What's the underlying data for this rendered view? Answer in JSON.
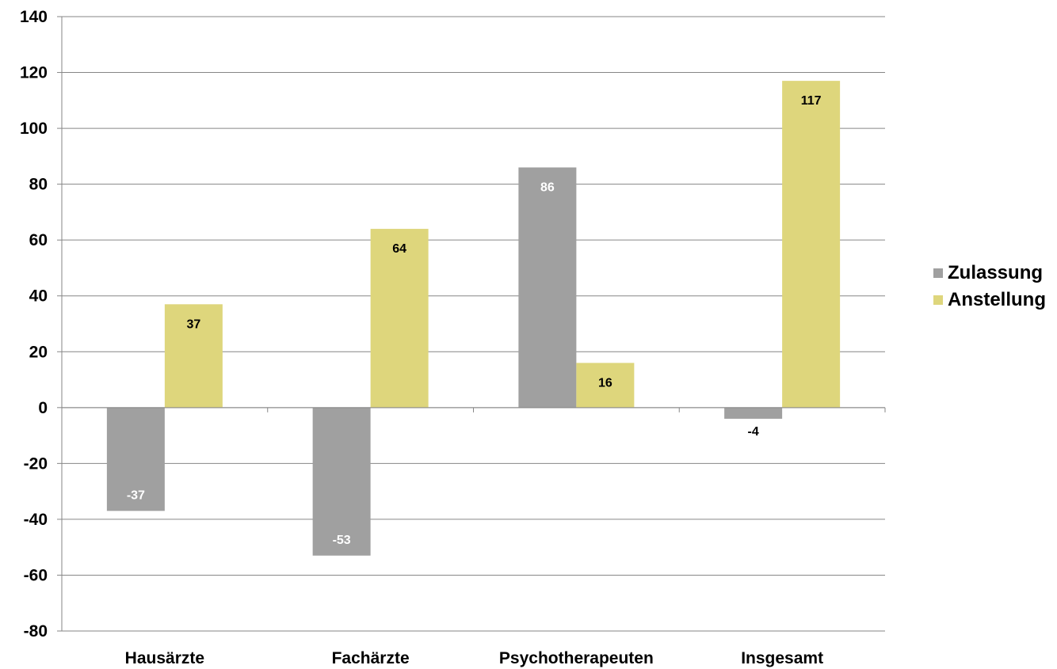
{
  "chart_data": {
    "type": "bar",
    "categories": [
      "Hausärzte",
      "Fachärzte",
      "Psychotherapeuten",
      "Insgesamt"
    ],
    "series": [
      {
        "name": "Zulassung",
        "values": [
          -37,
          -53,
          86,
          -4
        ],
        "color": "#a0a0a0",
        "label_color": "#ffffff"
      },
      {
        "name": "Anstellung",
        "values": [
          37,
          64,
          16,
          117
        ],
        "color": "#ded67c",
        "label_color": "#000000"
      }
    ],
    "data_labels": {
      "Zulassung": [
        "-37",
        "-53",
        "86",
        "-4"
      ],
      "Anstellung": [
        "37",
        "64",
        "16",
        "117"
      ]
    },
    "yticks": [
      "140",
      "120",
      "100",
      "80",
      "60",
      "40",
      "20",
      "0",
      "-20",
      "-40",
      "-60",
      "-80"
    ],
    "ylim": [
      -80,
      140
    ],
    "grid": true,
    "legend_position": "right",
    "title": "",
    "xlabel": "",
    "ylabel": ""
  },
  "legend": {
    "items": [
      {
        "label": "Zulassung",
        "color": "#a0a0a0"
      },
      {
        "label": "Anstellung",
        "color": "#ded67c"
      }
    ]
  }
}
